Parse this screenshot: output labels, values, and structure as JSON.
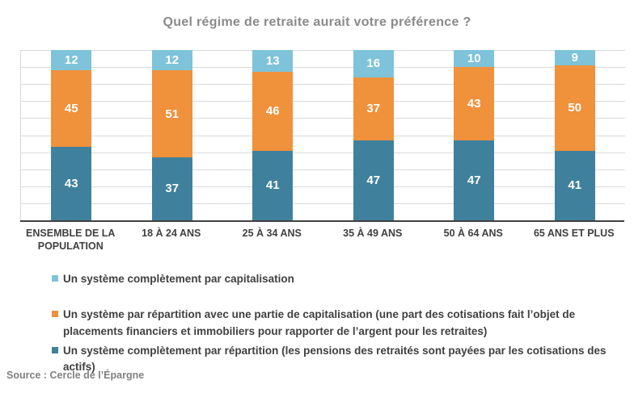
{
  "title": "Quel régime de retraite aurait votre préférence ?",
  "source": "Source : Cercle de l’Épargne",
  "colors": {
    "capitalisation": "#7EC3D9",
    "mixte": "#F0913C",
    "repartition": "#3F819D",
    "title_text": "#8A8A8A",
    "axis_text": "#404040",
    "gridline": "#D9D9D9",
    "axis_line": "#404040",
    "value_label": "#FFFFFF"
  },
  "chart_data": {
    "type": "bar",
    "stacked": true,
    "title": "Quel régime de retraite aurait votre préférence ?",
    "xlabel": "",
    "ylabel": "",
    "ylim": [
      0,
      100
    ],
    "grid": "horizontal, every 10 units",
    "legend_position": "bottom",
    "value_labels": "inside segments, white",
    "categories": [
      "ENSEMBLE DE LA POPULATION",
      "18 À 24 ANS",
      "25 À 34 ANS",
      "35 À 49 ANS",
      "50 À 64 ANS",
      "65 ANS ET PLUS"
    ],
    "series": [
      {
        "name": "Un système complètement par capitalisation",
        "color": "#7EC3D9",
        "stack_position": "top",
        "values": [
          12,
          12,
          13,
          16,
          10,
          9
        ]
      },
      {
        "name": "Un système par répartition avec une partie de capitalisation (une part des cotisations fait l’objet de placements financiers et immobiliers pour rapporter de l’argent pour les retraites)",
        "color": "#F0913C",
        "stack_position": "middle",
        "values": [
          45,
          51,
          46,
          37,
          43,
          50
        ]
      },
      {
        "name": "Un système complètement par répartition (les pensions des retraités sont payées par les cotisations des actifs)",
        "color": "#3F819D",
        "stack_position": "bottom",
        "values": [
          43,
          37,
          41,
          47,
          47,
          41
        ]
      }
    ]
  }
}
